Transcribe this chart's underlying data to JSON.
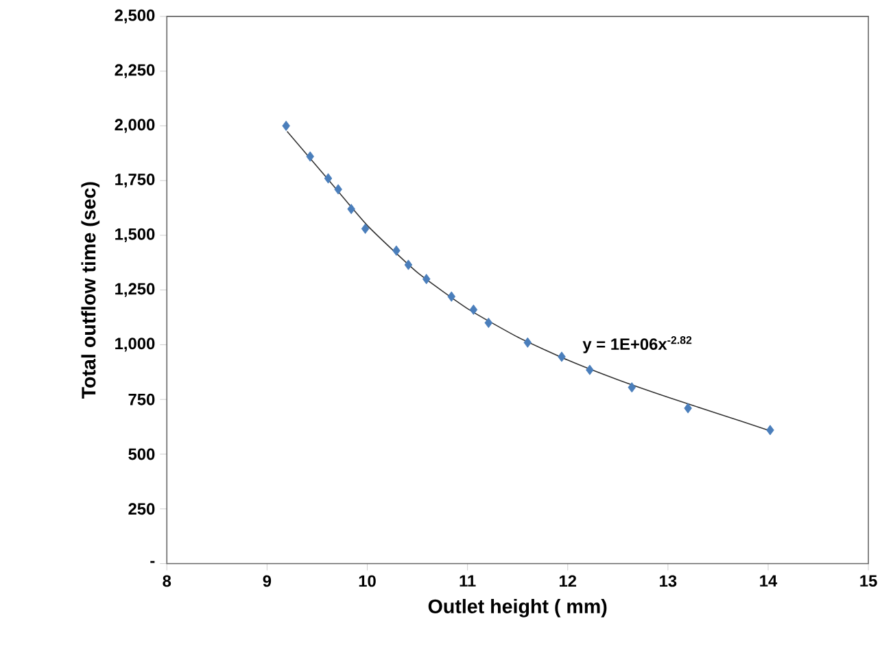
{
  "chart_data": {
    "type": "scatter",
    "xlabel": "Outlet height ( mm)",
    "ylabel": "Total outflow time (sec)",
    "xlim": [
      8,
      15
    ],
    "xticks": [
      8,
      9,
      10,
      11,
      12,
      13,
      14,
      15
    ],
    "ylim": [
      0,
      2500
    ],
    "yticks": [
      {
        "value": 0,
        "label": "-"
      },
      {
        "value": 250,
        "label": "250"
      },
      {
        "value": 500,
        "label": "500"
      },
      {
        "value": 750,
        "label": "750"
      },
      {
        "value": 1000,
        "label": "1,000"
      },
      {
        "value": 1250,
        "label": "1,250"
      },
      {
        "value": 1500,
        "label": "1,500"
      },
      {
        "value": 1750,
        "label": "1,750"
      },
      {
        "value": 2000,
        "label": "2,000"
      },
      {
        "value": 2250,
        "label": "2,250"
      },
      {
        "value": 2500,
        "label": "2,500"
      }
    ],
    "grid": false,
    "annotations": [
      "y = 1E+06x$^{-2.82}$"
    ],
    "series": [
      {
        "marker": "diamond",
        "color": "#4a7ebb",
        "x": [
          9.19,
          9.43,
          9.61,
          9.71,
          9.84,
          9.98,
          10.29,
          10.41,
          10.59,
          10.84,
          11.06,
          11.21,
          11.6,
          11.94,
          12.22,
          12.64,
          13.2,
          14.02
        ],
        "values": [
          2000,
          1860,
          1760,
          1710,
          1620,
          1530,
          1430,
          1365,
          1300,
          1220,
          1160,
          1100,
          1010,
          945,
          885,
          805,
          710,
          610
        ]
      },
      {
        "type": "line",
        "marker": "none",
        "color": "#333333",
        "x": [
          9.2,
          9.6,
          10,
          10.5,
          11,
          11.5,
          12,
          12.5,
          13,
          13.5,
          14
        ],
        "values": [
          1975,
          1760,
          1545,
          1330,
          1165,
          1035,
          930,
          840,
          760,
          685,
          610
        ]
      }
    ]
  }
}
